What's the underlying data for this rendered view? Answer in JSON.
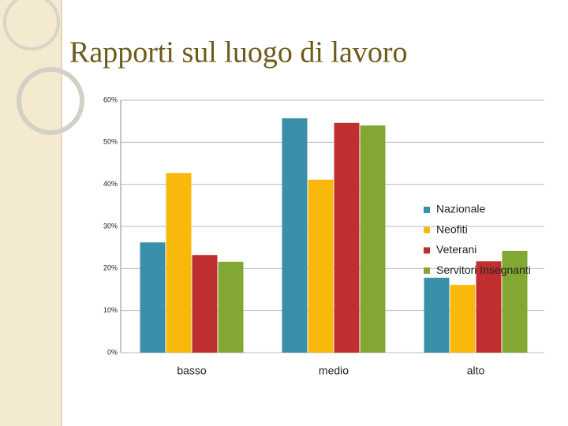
{
  "chart_data": {
    "type": "bar",
    "title": "Rapporti sul luogo di lavoro",
    "categories": [
      "basso",
      "medio",
      "alto"
    ],
    "series": [
      {
        "name": "Nazionale",
        "color": "#3a90a8",
        "values": [
          26.2,
          55.7,
          17.8
        ]
      },
      {
        "name": "Neofiti",
        "color": "#f9b80c",
        "values": [
          42.7,
          41.1,
          16.1
        ]
      },
      {
        "name": "Veterani",
        "color": "#c02f2f",
        "values": [
          23.2,
          54.6,
          21.7
        ]
      },
      {
        "name": "Servitori Insegnanti",
        "color": "#82a732",
        "values": [
          21.6,
          54.0,
          24.2
        ]
      }
    ],
    "ylim": [
      0,
      60
    ],
    "yticks": [
      {
        "value": 0,
        "label": "0%"
      },
      {
        "value": 10,
        "label": "10%"
      },
      {
        "value": 20,
        "label": "20%"
      },
      {
        "value": 30,
        "label": "30%"
      },
      {
        "value": 40,
        "label": "40%"
      },
      {
        "value": 50,
        "label": "50%"
      },
      {
        "value": 60,
        "label": "60%"
      }
    ],
    "grid": true,
    "legend": "right"
  }
}
